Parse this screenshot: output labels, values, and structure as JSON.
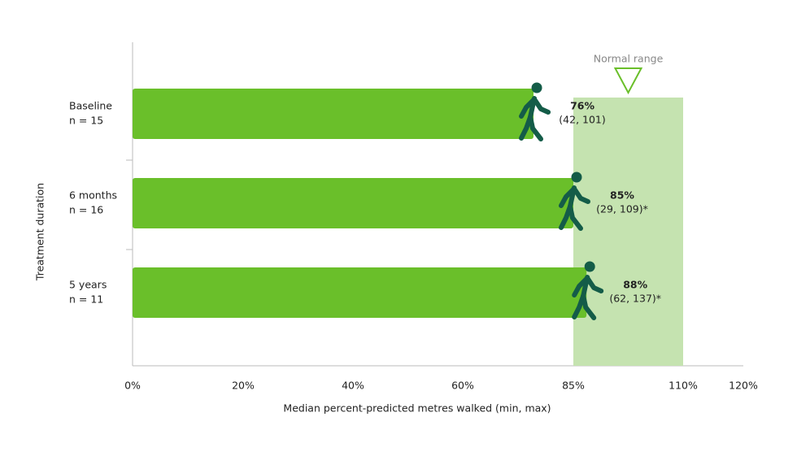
{
  "chart_data": {
    "type": "hbar",
    "categories": [
      "Baseline",
      "6 months",
      "5 years"
    ],
    "category_sublabels": [
      "n = 15",
      "n = 16",
      "n = 11"
    ],
    "values": [
      76,
      85,
      88
    ],
    "value_labels": [
      "76%",
      "85%",
      "88%"
    ],
    "range_labels": [
      "(42, 101)",
      "(29, 109)*",
      "(62, 137)*"
    ],
    "color": "#6abf2a",
    "xlim": [
      0,
      120
    ],
    "xticks": [
      {
        "value": 0,
        "label": "0%"
      },
      {
        "value": 20,
        "label": "20%"
      },
      {
        "value": 40,
        "label": "40%"
      },
      {
        "value": 60,
        "label": "60%"
      },
      {
        "value": 85,
        "label": "85%"
      },
      {
        "value": 110,
        "label": "110%"
      },
      {
        "value": 120,
        "label": "120%"
      }
    ],
    "xlabel": "Median percent-predicted metres walked (min, max)",
    "ylabel": "Treatment duration",
    "normal_range": {
      "label": "Normal range",
      "from": 85,
      "to": 110,
      "color": "#c5e3b0"
    }
  }
}
